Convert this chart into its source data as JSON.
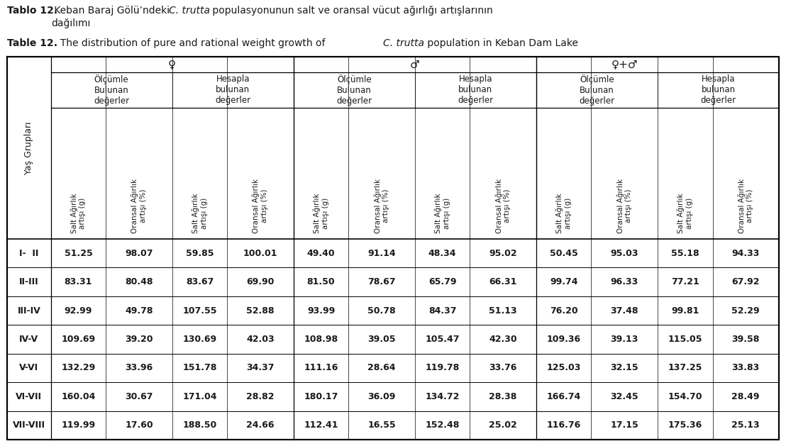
{
  "title_bold": "Tablo 12.",
  "title_normal": "  Keban Baraj Gölü’ndeki ",
  "title_italic": "C. trutta",
  "title_rest": " populasyonunun salt ve oransal vücut ağırlığı artışlarının",
  "title_line2": "              dağılımı",
  "subtitle_bold": "Table 12.",
  "subtitle_normal": "   The distribution of pure and rational weight growth of ",
  "subtitle_italic": "C. trutta",
  "subtitle_rest": " population in Keban Dam Lake",
  "col_headers_rotated": [
    "Salt Ağırlık\nartışı (g)",
    "Oransal Ağırlık\nartışı (%)",
    "Salt Ağırlık\nartışı (g)",
    "Oransal Ağırlık\nartışı (%)",
    "Salt Ağırlık\nartışı (g)",
    "Oransal Ağırlık\nartışı (%)",
    "Salt Ağırlık\nartışı (g)",
    "Oransal Ağırlık\nartışı (%)",
    "Salt Ağırlık\nartışı (g)",
    "Oransal Ağırlık\nartışı (%)",
    "Salt Ağırlık\nartışı (g)",
    "Oransal Ağırlık\nartışı (%)"
  ],
  "row_header": "Yaş Grupları",
  "rows": [
    [
      "I-  II",
      "51.25",
      "98.07",
      "59.85",
      "100.01",
      "49.40",
      "91.14",
      "48.34",
      "95.02",
      "50.45",
      "95.03",
      "55.18",
      "94.33"
    ],
    [
      "II-III",
      "83.31",
      "80.48",
      "83.67",
      "69.90",
      "81.50",
      "78.67",
      "65.79",
      "66.31",
      "99.74",
      "96.33",
      "77.21",
      "67.92"
    ],
    [
      "III-IV",
      "92.99",
      "49.78",
      "107.55",
      "52.88",
      "93.99",
      "50.78",
      "84.37",
      "51.13",
      "76.20",
      "37.48",
      "99.81",
      "52.29"
    ],
    [
      "IV-V",
      "109.69",
      "39.20",
      "130.69",
      "42.03",
      "108.98",
      "39.05",
      "105.47",
      "42.30",
      "109.36",
      "39.13",
      "115.05",
      "39.58"
    ],
    [
      "V-VI",
      "132.29",
      "33.96",
      "151.78",
      "34.37",
      "111.16",
      "28.64",
      "119.78",
      "33.76",
      "125.03",
      "32.15",
      "137.25",
      "33.83"
    ],
    [
      "VI-VII",
      "160.04",
      "30.67",
      "171.04",
      "28.82",
      "180.17",
      "36.09",
      "134.72",
      "28.38",
      "166.74",
      "32.45",
      "154.70",
      "28.49"
    ],
    [
      "VII-VIII",
      "119.99",
      "17.60",
      "188.50",
      "24.66",
      "112.41",
      "16.55",
      "152.48",
      "25.02",
      "116.76",
      "17.15",
      "175.36",
      "25.13"
    ]
  ],
  "bg_color": "#ffffff",
  "text_color": "#1a1a1a",
  "line_color": "#000000"
}
